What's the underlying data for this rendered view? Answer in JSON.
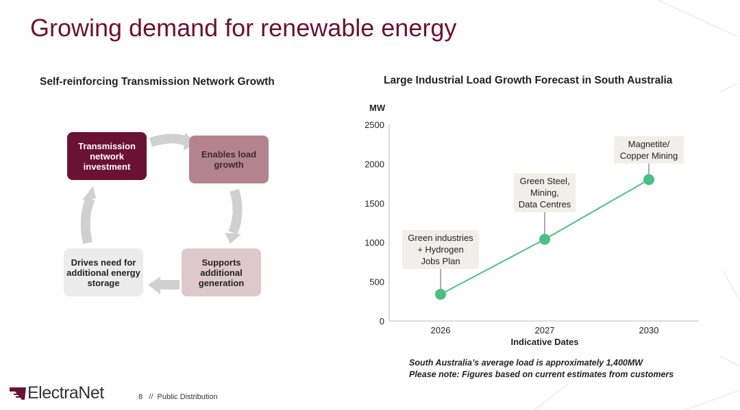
{
  "title": "Growing demand for renewable energy",
  "left_panel": {
    "title": "Self-reinforcing Transmission Network Growth",
    "cycle": [
      {
        "label": "Transmission network investment",
        "color": "#6b1232",
        "text_color": "#ffffff"
      },
      {
        "label": "Enables load growth",
        "color": "#b3848f",
        "text_color": "#3a2a2e"
      },
      {
        "label": "Supports additional generation",
        "color": "#dcc8cd",
        "text_color": "#222222"
      },
      {
        "label": "Drives need for additional energy storage",
        "color": "#ececec",
        "text_color": "#222222"
      }
    ]
  },
  "chart_data": {
    "type": "line",
    "title": "Large Industrial Load Growth Forecast in South Australia",
    "ylabel": "MW",
    "xlabel": "Indicative Dates",
    "categories": [
      "2026",
      "2027",
      "2030"
    ],
    "values": [
      340,
      1040,
      1800
    ],
    "ylim": [
      0,
      2500
    ],
    "yticks": [
      "0",
      "500",
      "1000",
      "1500",
      "2000",
      "2500"
    ],
    "annotations": [
      "Green industries + Hydrogen Jobs Plan",
      "Green Steel, Mining, Data Centres",
      "Magnetite/ Copper Mining"
    ],
    "line_color": "#4cbf84",
    "grid": false
  },
  "notes": [
    "South Australia’s average load is approximately 1,400MW",
    "Please note: Figures based on current estimates from customers"
  ],
  "footer": {
    "logo": "ElectraNet",
    "page": "8",
    "sep": "//",
    "classification": "Public Distribution"
  }
}
